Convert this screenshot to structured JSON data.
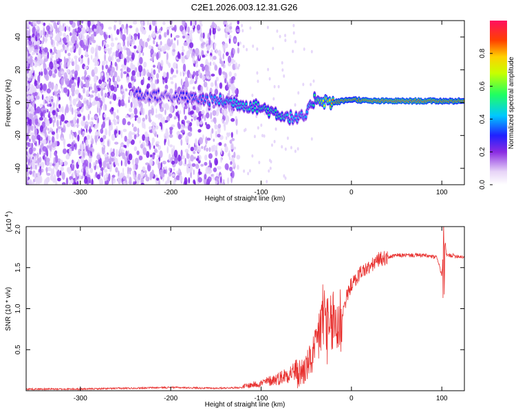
{
  "title": "C2E1.2026.003.12.31.G26",
  "chart_data": [
    {
      "type": "heatmap",
      "name": "spectrogram",
      "xlabel": "Height of straight line (km)",
      "ylabel": "Frequency (Hz)",
      "xlim": [
        -360,
        125
      ],
      "ylim": [
        -50,
        50
      ],
      "xticks": [
        -300,
        -200,
        -100,
        0,
        100
      ],
      "yticks": [
        -40,
        -20,
        0,
        20,
        40
      ],
      "colorbar": {
        "label": "Normalized spectral amplitude",
        "range": [
          0,
          1
        ],
        "ticks": [
          0.0,
          0.2,
          0.4,
          0.6,
          0.8
        ]
      },
      "ridge": {
        "x": [
          -240,
          -200,
          -160,
          -140,
          -120,
          -100,
          -80,
          -60,
          -50,
          -45,
          -40,
          -30,
          -20,
          -10,
          0,
          20,
          50,
          80,
          100,
          125
        ],
        "y": [
          5,
          4,
          2,
          1,
          -1,
          -3,
          -7,
          -10,
          -8,
          -2,
          3,
          1,
          0,
          1,
          2,
          1,
          1,
          1,
          1,
          1
        ],
        "amplitude": [
          0.3,
          0.25,
          0.35,
          0.45,
          0.45,
          0.5,
          0.5,
          0.4,
          0.4,
          0.45,
          0.55,
          0.7,
          0.85,
          0.9,
          0.85,
          0.95,
          0.95,
          0.95,
          0.9,
          0.9
        ]
      }
    },
    {
      "type": "line",
      "name": "snr",
      "xlabel": "Height of straight line (km)",
      "ylabel": "SNR (10 * v/v)",
      "yscale_label": "(x10",
      "yscale_exp": "4",
      "xlim": [
        -360,
        125
      ],
      "ylim": [
        0,
        2.0
      ],
      "xticks": [
        -300,
        -200,
        -100,
        0,
        100
      ],
      "yticks": [
        0.5,
        1.0,
        1.5,
        2.0
      ],
      "ytick_labels": [
        "0.5",
        "1.0",
        "1.5",
        "2.0"
      ],
      "color": "#e8302e",
      "series": [
        {
          "name": "SNR",
          "x": [
            -360,
            -300,
            -250,
            -200,
            -150,
            -120,
            -100,
            -80,
            -60,
            -50,
            -40,
            -35,
            -30,
            -25,
            -20,
            -15,
            -10,
            -5,
            0,
            5,
            10,
            20,
            30,
            50,
            80,
            95,
            100,
            103,
            105,
            110,
            125
          ],
          "y": [
            0.02,
            0.02,
            0.03,
            0.04,
            0.03,
            0.04,
            0.07,
            0.12,
            0.2,
            0.3,
            0.5,
            0.8,
            1.0,
            0.7,
            0.9,
            0.85,
            0.95,
            1.15,
            1.3,
            1.35,
            1.45,
            1.5,
            1.6,
            1.65,
            1.65,
            1.62,
            1.4,
            1.95,
            1.65,
            1.65,
            1.63
          ]
        }
      ]
    }
  ]
}
